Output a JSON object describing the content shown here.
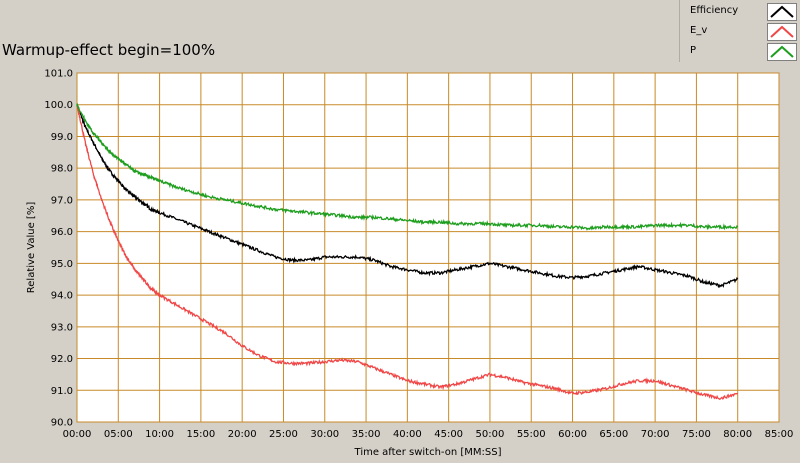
{
  "chart_data": {
    "type": "line",
    "title": "Warmup-effect begin=100%",
    "xlabel": "Time after switch-on [MM:SS]",
    "ylabel": "Relative Value [%]",
    "xlim": [
      0,
      85
    ],
    "ylim": [
      90.0,
      101.0
    ],
    "x_ticks": [
      0,
      5,
      10,
      15,
      20,
      25,
      30,
      35,
      40,
      45,
      50,
      55,
      60,
      65,
      70,
      75,
      80,
      85
    ],
    "x_tick_labels": [
      "00:00",
      "05:00",
      "10:00",
      "15:00",
      "20:00",
      "25:00",
      "30:00",
      "35:00",
      "40:00",
      "45:00",
      "50:00",
      "55:00",
      "60:00",
      "65:00",
      "70:00",
      "75:00",
      "80:00",
      "85:00"
    ],
    "y_ticks": [
      90,
      91,
      92,
      93,
      94,
      95,
      96,
      97,
      98,
      99,
      100,
      101
    ],
    "y_tick_labels": [
      "90.0",
      "91.0",
      "92.0",
      "93.0",
      "94.0",
      "95.0",
      "96.0",
      "97.0",
      "98.0",
      "99.0",
      "100.0",
      "101.0"
    ],
    "grid": true,
    "legend": "top-right",
    "background_color": "#ffffff",
    "grid_color": "#c88a28",
    "series": [
      {
        "name": "Efficiency",
        "color": "#000000",
        "x": [
          0,
          1,
          2,
          3,
          4,
          5,
          6,
          7,
          8,
          9,
          10,
          12,
          14,
          16,
          18,
          20,
          22,
          24,
          26,
          28,
          30,
          32,
          34,
          36,
          38,
          40,
          42,
          44,
          46,
          48,
          50,
          52,
          54,
          56,
          58,
          60,
          62,
          64,
          66,
          68,
          70,
          72,
          74,
          76,
          78,
          80
        ],
        "values": [
          100.0,
          99.3,
          98.8,
          98.3,
          97.9,
          97.6,
          97.3,
          97.1,
          96.9,
          96.7,
          96.6,
          96.4,
          96.2,
          96.0,
          95.8,
          95.6,
          95.4,
          95.2,
          95.1,
          95.1,
          95.2,
          95.2,
          95.2,
          95.1,
          94.9,
          94.8,
          94.7,
          94.7,
          94.8,
          94.9,
          95.0,
          94.9,
          94.8,
          94.7,
          94.6,
          94.55,
          94.6,
          94.7,
          94.8,
          94.9,
          94.8,
          94.7,
          94.6,
          94.4,
          94.3,
          94.5
        ]
      },
      {
        "name": "E_v",
        "color": "#f04848",
        "x": [
          0,
          1,
          2,
          3,
          4,
          5,
          6,
          7,
          8,
          9,
          10,
          12,
          14,
          16,
          18,
          20,
          22,
          24,
          26,
          28,
          30,
          32,
          34,
          36,
          38,
          40,
          42,
          44,
          46,
          48,
          50,
          52,
          54,
          56,
          58,
          60,
          62,
          64,
          66,
          68,
          70,
          72,
          74,
          76,
          78,
          80
        ],
        "values": [
          100.0,
          98.8,
          97.8,
          97.0,
          96.3,
          95.7,
          95.2,
          94.8,
          94.5,
          94.2,
          94.0,
          93.7,
          93.4,
          93.1,
          92.8,
          92.4,
          92.1,
          91.9,
          91.85,
          91.85,
          91.9,
          91.95,
          91.9,
          91.7,
          91.5,
          91.3,
          91.2,
          91.1,
          91.2,
          91.35,
          91.5,
          91.4,
          91.25,
          91.15,
          91.05,
          90.9,
          90.95,
          91.05,
          91.2,
          91.3,
          91.3,
          91.15,
          91.0,
          90.85,
          90.75,
          90.9
        ]
      },
      {
        "name": "P",
        "color": "#1e9e1e",
        "x": [
          0,
          1,
          2,
          3,
          4,
          5,
          6,
          7,
          8,
          9,
          10,
          12,
          14,
          16,
          18,
          20,
          22,
          24,
          26,
          28,
          30,
          32,
          34,
          36,
          38,
          40,
          42,
          44,
          46,
          48,
          50,
          52,
          54,
          56,
          58,
          60,
          62,
          64,
          66,
          68,
          70,
          72,
          74,
          76,
          78,
          80
        ],
        "values": [
          100.0,
          99.5,
          99.1,
          98.8,
          98.5,
          98.3,
          98.1,
          97.9,
          97.8,
          97.7,
          97.6,
          97.4,
          97.25,
          97.1,
          97.0,
          96.9,
          96.8,
          96.7,
          96.65,
          96.6,
          96.55,
          96.5,
          96.45,
          96.45,
          96.4,
          96.35,
          96.3,
          96.3,
          96.25,
          96.25,
          96.25,
          96.2,
          96.2,
          96.2,
          96.15,
          96.15,
          96.1,
          96.15,
          96.15,
          96.15,
          96.2,
          96.2,
          96.2,
          96.15,
          96.15,
          96.15
        ]
      }
    ]
  }
}
